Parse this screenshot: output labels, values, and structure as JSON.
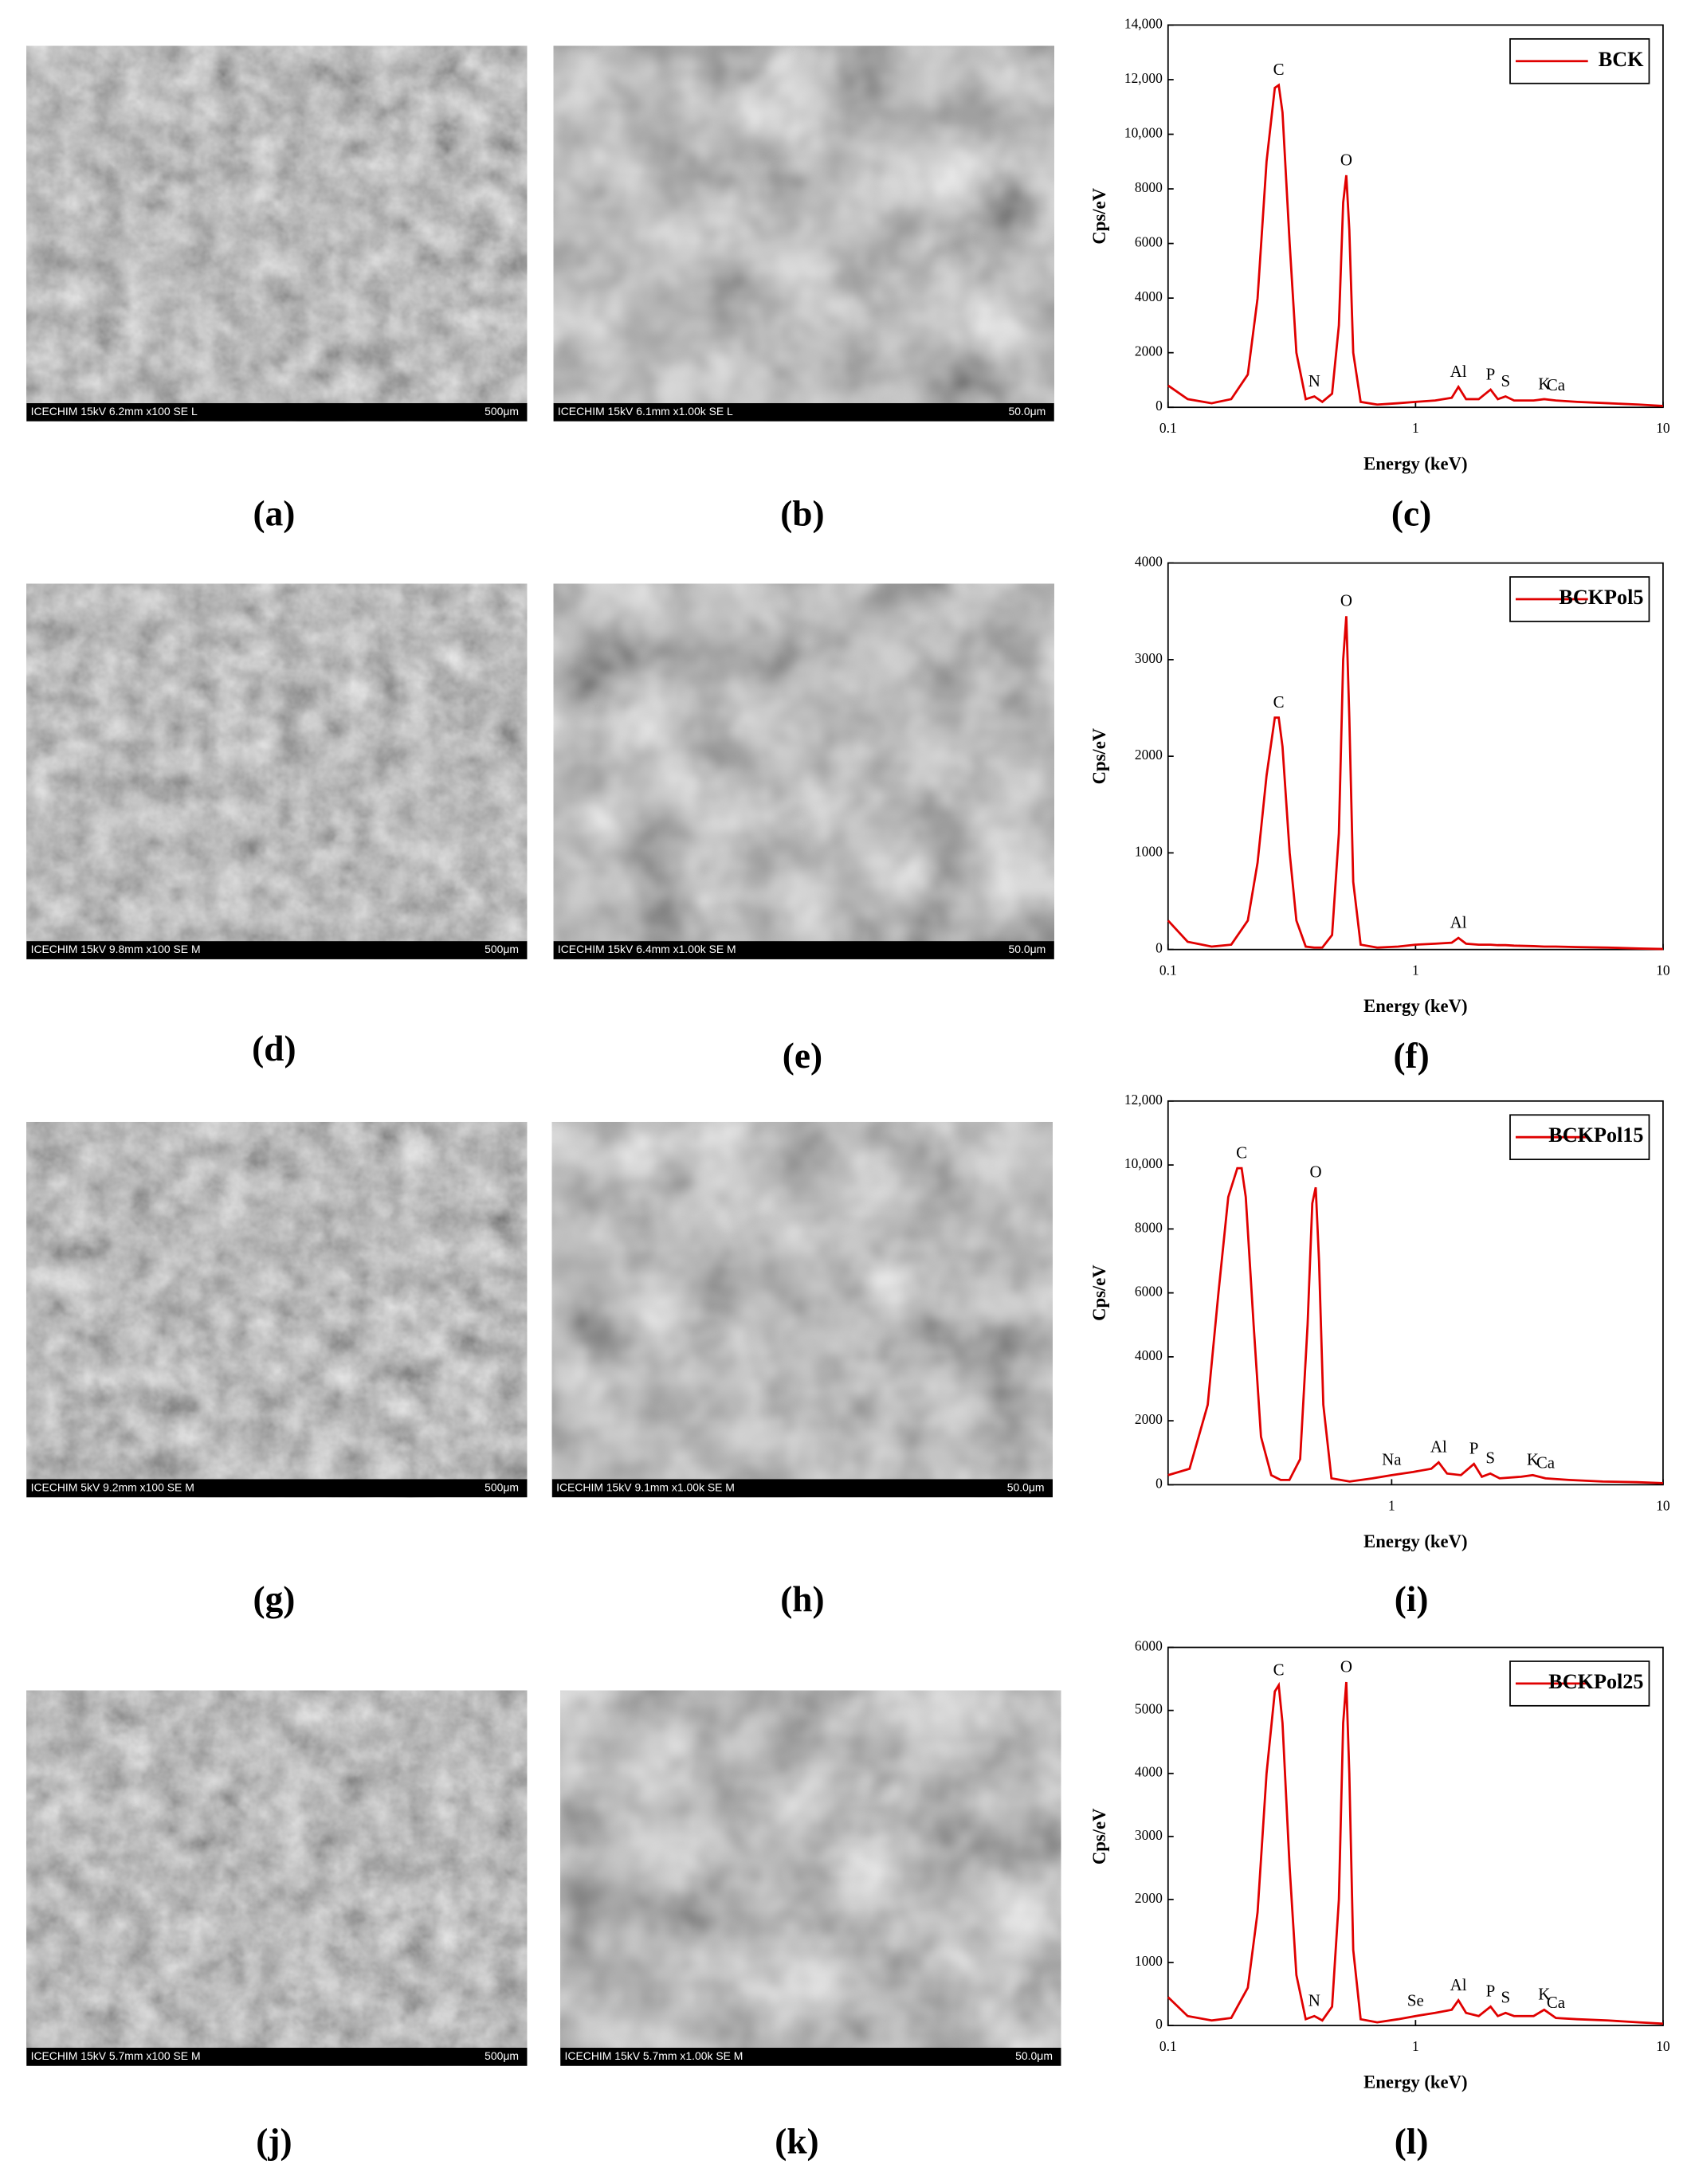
{
  "panel_labels": [
    "(a)",
    "(b)",
    "(c)",
    "(d)",
    "(e)",
    "(f)",
    "(g)",
    "(h)",
    "(i)",
    "(j)",
    "(k)",
    "(l)"
  ],
  "micrographs": [
    {
      "caption": "ICECHIM 15kV 6.2mm x100 SE L",
      "scale": "500μm"
    },
    {
      "caption": "ICECHIM 15kV 6.1mm x1.00k SE L",
      "scale": "50.0μm"
    },
    {
      "caption": "ICECHIM 15kV 9.8mm x100 SE M",
      "scale": "500μm"
    },
    {
      "caption": "ICECHIM 15kV 6.4mm x1.00k SE M",
      "scale": "50.0μm"
    },
    {
      "caption": "ICECHIM 5kV 9.2mm x100 SE M",
      "scale": "500μm"
    },
    {
      "caption": "ICECHIM 15kV 9.1mm x1.00k SE M",
      "scale": "50.0μm"
    },
    {
      "caption": "ICECHIM 15kV 5.7mm x100 SE M",
      "scale": "500μm"
    },
    {
      "caption": "ICECHIM 15kV 5.7mm x1.00k SE M",
      "scale": "50.0μm"
    }
  ],
  "chart_data": [
    {
      "type": "line",
      "xscale": "log",
      "xlabel": "Energy (keV)",
      "ylabel": "Cps/eV",
      "legend": "upper right",
      "xlim": [
        0.1,
        10
      ],
      "xticks": [
        0.1,
        1,
        10
      ],
      "ylim": [
        0,
        14000
      ],
      "yticks": [
        0,
        2000,
        4000,
        6000,
        8000,
        {
          "value": 10000,
          "label": "10,000"
        },
        {
          "value": 12000,
          "label": "12,000"
        },
        {
          "value": 14000,
          "label": "14,000"
        }
      ],
      "x": [
        0.1,
        0.12,
        0.15,
        0.18,
        0.21,
        0.23,
        0.25,
        0.27,
        0.28,
        0.29,
        0.31,
        0.33,
        0.36,
        0.39,
        0.42,
        0.46,
        0.49,
        0.51,
        0.525,
        0.54,
        0.56,
        0.6,
        0.7,
        0.85,
        1.0,
        1.2,
        1.4,
        1.49,
        1.6,
        1.8,
        2.01,
        2.15,
        2.31,
        2.5,
        3.0,
        3.31,
        3.69,
        4.5,
        6,
        8,
        10
      ],
      "series": [
        {
          "name": "BCK",
          "color": "#e00000",
          "values": [
            800,
            300,
            150,
            300,
            1200,
            4000,
            9000,
            11700,
            11800,
            10800,
            6000,
            2000,
            300,
            400,
            200,
            500,
            3000,
            7500,
            8500,
            6500,
            2000,
            200,
            100,
            150,
            200,
            250,
            350,
            750,
            300,
            300,
            650,
            300,
            400,
            250,
            250,
            300,
            250,
            200,
            150,
            100,
            50
          ]
        }
      ],
      "annotations": [
        {
          "text": "C",
          "x": 0.28
        },
        {
          "text": "O",
          "x": 0.525
        },
        {
          "text": "N",
          "x": 0.39
        },
        {
          "text": "Al",
          "x": 1.49
        },
        {
          "text": "P",
          "x": 2.01
        },
        {
          "text": "S",
          "x": 2.31
        },
        {
          "text": "K",
          "x": 3.31
        },
        {
          "text": "Ca",
          "x": 3.69
        }
      ]
    },
    {
      "type": "line",
      "xscale": "log",
      "xlabel": "Energy (keV)",
      "ylabel": "Cps/eV",
      "legend": "upper right",
      "xlim": [
        0.1,
        10
      ],
      "xticks": [
        0.1,
        1,
        10
      ],
      "ylim": [
        0,
        4000
      ],
      "yticks": [
        0,
        1000,
        2000,
        3000,
        4000
      ],
      "x": [
        0.1,
        0.12,
        0.15,
        0.18,
        0.21,
        0.23,
        0.25,
        0.27,
        0.28,
        0.29,
        0.31,
        0.33,
        0.36,
        0.39,
        0.42,
        0.46,
        0.49,
        0.51,
        0.525,
        0.54,
        0.56,
        0.6,
        0.7,
        0.85,
        1.0,
        1.2,
        1.4,
        1.49,
        1.6,
        1.8,
        2.01,
        2.15,
        2.31,
        2.5,
        3.0,
        3.31,
        3.69,
        4.5,
        6,
        8,
        10
      ],
      "series": [
        {
          "name": "BCKPol5",
          "color": "#e00000",
          "values": [
            300,
            80,
            30,
            50,
            300,
            900,
            1800,
            2400,
            2400,
            2100,
            1000,
            300,
            30,
            20,
            20,
            150,
            1200,
            3000,
            3450,
            2400,
            700,
            50,
            20,
            30,
            50,
            60,
            70,
            120,
            60,
            50,
            50,
            45,
            45,
            40,
            35,
            30,
            30,
            25,
            20,
            10,
            5
          ]
        }
      ],
      "annotations": [
        {
          "text": "C",
          "x": 0.28
        },
        {
          "text": "O",
          "x": 0.525
        },
        {
          "text": "Al",
          "x": 1.49
        }
      ]
    },
    {
      "type": "line",
      "xscale": "log",
      "xlabel": "Energy (keV)",
      "ylabel": "Cps/eV",
      "legend": "upper right",
      "xlim": [
        0.15,
        10
      ],
      "xticks": [
        1,
        10
      ],
      "ylim": [
        0,
        12000
      ],
      "yticks": [
        0,
        2000,
        4000,
        6000,
        8000,
        {
          "value": 10000,
          "label": "10,000"
        },
        {
          "value": 12000,
          "label": "12,000"
        }
      ],
      "x": [
        0.15,
        0.18,
        0.21,
        0.23,
        0.25,
        0.27,
        0.28,
        0.29,
        0.31,
        0.33,
        0.36,
        0.39,
        0.42,
        0.46,
        0.49,
        0.51,
        0.525,
        0.54,
        0.56,
        0.6,
        0.7,
        0.85,
        1.0,
        1.2,
        1.4,
        1.49,
        1.6,
        1.8,
        2.01,
        2.15,
        2.31,
        2.5,
        3.0,
        3.31,
        3.69,
        4.5,
        6,
        8,
        10
      ],
      "series": [
        {
          "name": "BCKPol15",
          "color": "#e00000",
          "values": [
            300,
            500,
            2500,
            6000,
            9000,
            9900,
            9900,
            9000,
            5000,
            1500,
            300,
            150,
            150,
            800,
            5000,
            8800,
            9300,
            7000,
            2500,
            200,
            100,
            200,
            300,
            400,
            500,
            700,
            350,
            300,
            650,
            250,
            350,
            200,
            250,
            300,
            200,
            150,
            100,
            80,
            50
          ]
        }
      ],
      "annotations": [
        {
          "text": "C",
          "x": 0.28
        },
        {
          "text": "O",
          "x": 0.525
        },
        {
          "text": "Na",
          "x": 1.0
        },
        {
          "text": "Al",
          "x": 1.49
        },
        {
          "text": "P",
          "x": 2.01
        },
        {
          "text": "S",
          "x": 2.31
        },
        {
          "text": "K",
          "x": 3.31
        },
        {
          "text": "Ca",
          "x": 3.69
        }
      ]
    },
    {
      "type": "line",
      "xscale": "log",
      "xlabel": "Energy (keV)",
      "ylabel": "Cps/eV",
      "legend": "upper right",
      "xlim": [
        0.1,
        10
      ],
      "xticks": [
        0.1,
        1,
        10
      ],
      "ylim": [
        0,
        6000
      ],
      "yticks": [
        0,
        1000,
        2000,
        3000,
        4000,
        5000,
        6000
      ],
      "x": [
        0.1,
        0.12,
        0.15,
        0.18,
        0.21,
        0.23,
        0.25,
        0.27,
        0.28,
        0.29,
        0.31,
        0.33,
        0.36,
        0.39,
        0.42,
        0.46,
        0.49,
        0.51,
        0.525,
        0.54,
        0.56,
        0.6,
        0.7,
        0.85,
        1.0,
        1.2,
        1.4,
        1.49,
        1.6,
        1.8,
        2.01,
        2.15,
        2.31,
        2.5,
        3.0,
        3.31,
        3.69,
        4.5,
        6,
        8,
        10
      ],
      "series": [
        {
          "name": "BCKPol25",
          "color": "#e00000",
          "values": [
            450,
            150,
            80,
            120,
            600,
            1800,
            4000,
            5300,
            5400,
            4800,
            2500,
            800,
            100,
            150,
            80,
            300,
            2000,
            4800,
            5450,
            4000,
            1200,
            100,
            50,
            100,
            150,
            200,
            250,
            400,
            200,
            150,
            300,
            150,
            200,
            150,
            150,
            250,
            120,
            100,
            80,
            50,
            30
          ]
        }
      ],
      "annotations": [
        {
          "text": "C",
          "x": 0.28
        },
        {
          "text": "O",
          "x": 0.525
        },
        {
          "text": "N",
          "x": 0.39
        },
        {
          "text": "Se",
          "x": 1.0
        },
        {
          "text": "Al",
          "x": 1.49
        },
        {
          "text": "P",
          "x": 2.01
        },
        {
          "text": "S",
          "x": 2.31
        },
        {
          "text": "K",
          "x": 3.31
        },
        {
          "text": "Ca",
          "x": 3.69
        }
      ]
    }
  ]
}
